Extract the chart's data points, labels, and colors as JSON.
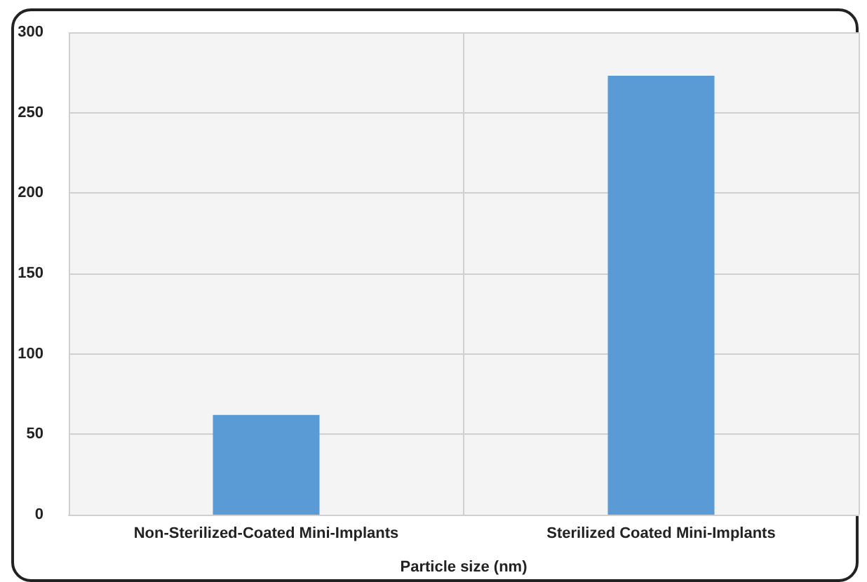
{
  "chart_data": {
    "type": "bar",
    "xlabel": "Particle size (nm)",
    "categories": [
      "Non-Sterilized-Coated Mini-Implants",
      "Sterilized Coated Mini-Implants"
    ],
    "values": [
      62,
      273
    ],
    "color": "#5b9bd5",
    "ylim": [
      0,
      300
    ],
    "yticks": [
      0,
      50,
      100,
      150,
      200,
      250,
      300
    ],
    "grid": true
  }
}
